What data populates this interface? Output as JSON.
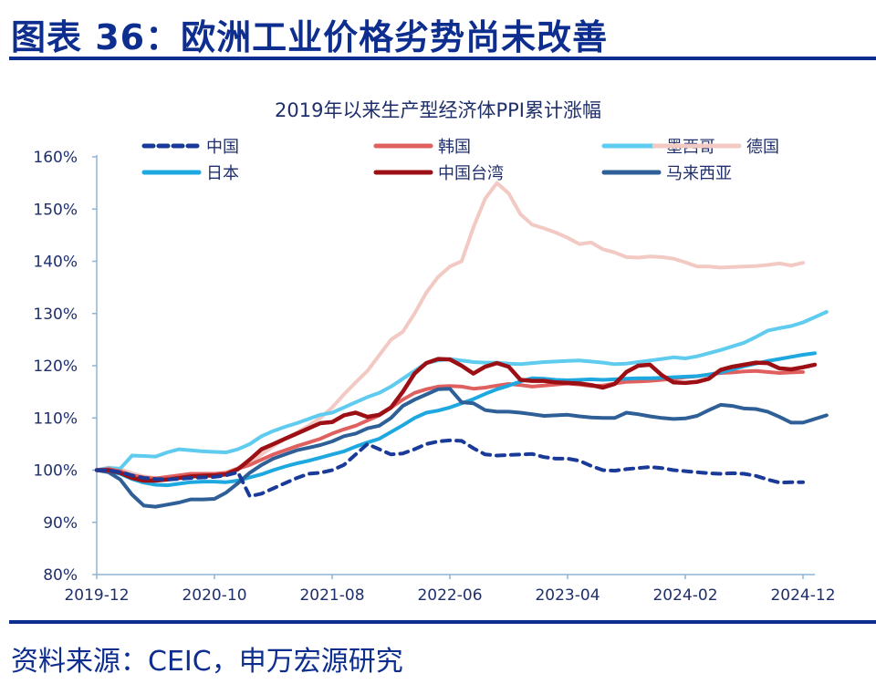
{
  "figure": {
    "title": "图表 36：欧洲工业价格劣势尚未改善",
    "source": "资料来源：CEIC，申万宏源研究"
  },
  "chart_data": {
    "type": "line",
    "title": "2019年以来生产型经济体PPI累计涨幅",
    "xlabel": "",
    "ylabel": "",
    "ylim": [
      80,
      160
    ],
    "yticks": [
      80,
      90,
      100,
      110,
      120,
      130,
      140,
      150,
      160
    ],
    "ytick_labels": [
      "80%",
      "90%",
      "100%",
      "110%",
      "120%",
      "130%",
      "140%",
      "150%",
      "160%"
    ],
    "x_start": "2019-12",
    "x_frequency": "monthly",
    "xtick_labels": [
      "2019-12",
      "2020-10",
      "2021-08",
      "2022-06",
      "2023-04",
      "2024-02",
      "2024-12"
    ],
    "xtick_months": [
      0,
      10,
      20,
      30,
      40,
      50,
      60
    ],
    "grid": false,
    "legend_position": "top",
    "series": [
      {
        "name": "中国",
        "color": "#1a3a9a",
        "style": "dashed",
        "values": [
          100,
          100,
          99.6,
          99,
          98.5,
          98.3,
          98.2,
          98.3,
          98.5,
          98.6,
          98.7,
          99,
          99.6,
          95,
          95.5,
          96.5,
          97.5,
          98.5,
          99.3,
          99.5,
          100,
          101,
          103,
          105,
          104,
          103,
          103.2,
          104,
          105,
          105.5,
          105.7,
          105.6,
          104.2,
          103,
          102.8,
          102.9,
          103,
          103.1,
          102.5,
          102.2,
          102.2,
          101.8,
          100.8,
          100,
          99.9,
          100.2,
          100.4,
          100.6,
          100.4,
          100,
          99.8,
          99.6,
          99.4,
          99.3,
          99.4,
          99.3,
          98.9,
          98.2,
          97.6,
          97.7,
          97.7
        ]
      },
      {
        "name": "韩国",
        "color": "#e06060",
        "style": "solid",
        "values": [
          100,
          100.2,
          99.8,
          99,
          98.6,
          98.4,
          98.7,
          99,
          99.3,
          99.3,
          99.3,
          99.5,
          100.3,
          101,
          102,
          103,
          103.8,
          104.6,
          105.3,
          106,
          107,
          107.8,
          108.5,
          109.5,
          110.5,
          112,
          113.5,
          114.8,
          115.5,
          116,
          116.1,
          116,
          115.6,
          115.8,
          116.2,
          116.5,
          116.3,
          116,
          116.2,
          116.4,
          116.6,
          116.4,
          116.1,
          116.2,
          116.6,
          116.9,
          117,
          117.1,
          117.3,
          117.5,
          117.8,
          118,
          118.3,
          118.6,
          118.7,
          118.9,
          119,
          118.8,
          118.6,
          118.7,
          118.8
        ]
      },
      {
        "name": "墨西哥",
        "color": "#5fcbee",
        "style": "solid",
        "values": [
          100,
          100.4,
          100.3,
          102.8,
          102.7,
          102.6,
          103.4,
          104,
          103.8,
          103.6,
          103.5,
          103.4,
          104,
          105,
          106.5,
          107.5,
          108.3,
          109,
          109.8,
          110.6,
          111,
          112,
          113,
          114,
          114.8,
          116,
          117.5,
          119,
          120.5,
          121,
          121.3,
          121,
          120.7,
          120.6,
          120.6,
          120.4,
          120.3,
          120.5,
          120.7,
          120.8,
          120.9,
          121,
          120.8,
          120.6,
          120.3,
          120.4,
          120.7,
          121,
          121.3,
          121.6,
          121.4,
          121.8,
          122.4,
          123,
          123.7,
          124.4,
          125.5,
          126.7,
          127.2,
          127.6,
          128.3,
          129.3,
          130.3
        ]
      },
      {
        "name": "德国",
        "color": "#f2c9c3",
        "style": "solid",
        "values": [
          100,
          100.5,
          100.2,
          99.4,
          98.8,
          98.5,
          98.6,
          99,
          99.1,
          99.1,
          99.2,
          99.5,
          100.4,
          101.5,
          103,
          104.6,
          106,
          107.2,
          108.5,
          110,
          112,
          114.5,
          116.8,
          119,
          122,
          125,
          126.5,
          130,
          134,
          137,
          139,
          140,
          146.5,
          152,
          155,
          153,
          149,
          147,
          146.3,
          145.5,
          144.5,
          143.3,
          143.6,
          142.3,
          141.7,
          140.8,
          140.7,
          140.9,
          140.8,
          140.5,
          139.8,
          139,
          139,
          138.8,
          138.9,
          139,
          139.1,
          139.3,
          139.6,
          139.2,
          139.7
        ]
      },
      {
        "name": "日本",
        "color": "#1ea8e0",
        "style": "solid",
        "values": [
          100,
          99.8,
          99.3,
          98.3,
          97.6,
          97.2,
          97.1,
          97.4,
          97.7,
          97.8,
          97.8,
          97.7,
          98,
          98.6,
          99.2,
          100,
          100.7,
          101.3,
          101.8,
          102.4,
          103,
          103.6,
          104.5,
          105.3,
          106,
          107.3,
          108.6,
          110,
          111,
          111.4,
          112,
          112.8,
          113.6,
          114.6,
          115.5,
          116.2,
          117,
          117.6,
          117.5,
          117.3,
          117.2,
          117.3,
          117.4,
          117.3,
          117.4,
          117.5,
          117.6,
          117.6,
          117.7,
          117.8,
          117.9,
          118,
          118.3,
          118.7,
          119.3,
          119.9,
          120.4,
          120.9,
          121.3,
          121.7,
          122.1,
          122.4
        ]
      },
      {
        "name": "中国台湾",
        "color": "#9c0f14",
        "style": "solid",
        "values": [
          100,
          100,
          99.5,
          98.5,
          98,
          98,
          98.2,
          98.5,
          98.8,
          98.9,
          99,
          99.2,
          100.2,
          102,
          104,
          105,
          106,
          107,
          108,
          109,
          109.2,
          110.5,
          111,
          110.2,
          110.6,
          112,
          115,
          118.5,
          120.5,
          121.3,
          121.2,
          120,
          118.5,
          119.8,
          120.5,
          119.8,
          117.3,
          117.1,
          117.1,
          116.8,
          116.7,
          116.6,
          116.3,
          115.8,
          116.5,
          118.8,
          120,
          120.2,
          118.2,
          116.8,
          116.7,
          116.9,
          117.5,
          119.2,
          119.8,
          120.2,
          120.6,
          120.5,
          119.5,
          119.3,
          119.7,
          120.2
        ]
      },
      {
        "name": "马来西亚",
        "color": "#2e5f96",
        "style": "solid",
        "values": [
          100,
          99.6,
          98.2,
          95.3,
          93.2,
          93,
          93.4,
          93.8,
          94.4,
          94.4,
          94.5,
          95.7,
          97.5,
          99.5,
          101,
          102.2,
          103,
          103.8,
          104.3,
          104.8,
          105.5,
          106.5,
          107,
          108,
          108.5,
          110,
          112.3,
          113.5,
          114.5,
          115.5,
          115.6,
          113,
          112.8,
          111.5,
          111.2,
          111.2,
          111,
          110.7,
          110.4,
          110.5,
          110.6,
          110.3,
          110.1,
          110,
          110,
          111,
          110.7,
          110.3,
          110,
          109.8,
          109.9,
          110.4,
          111.5,
          112.5,
          112.3,
          111.8,
          111.7,
          111.2,
          110.2,
          109.1,
          109.1,
          109.8,
          110.5
        ]
      }
    ]
  }
}
